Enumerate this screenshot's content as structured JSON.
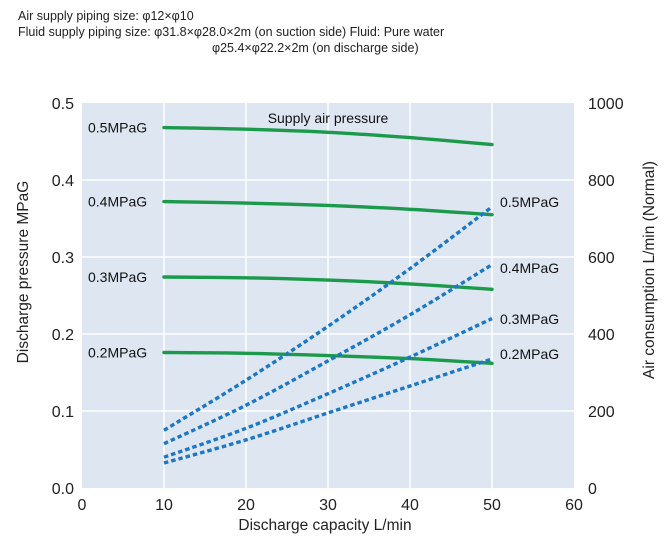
{
  "notes": {
    "air_piping": "Air supply piping size: φ12×φ10",
    "fluid_piping": "Fluid supply piping size: φ31.8×φ28.0×2m (on suction side)    Fluid: Pure water",
    "fluid_piping_2": "φ25.4×φ22.2×2m (on discharge side)"
  },
  "chart_data": {
    "type": "line",
    "annotation": "Supply air pressure",
    "xlabel": "Discharge capacity   L/min",
    "ylabel": "Discharge pressure   MPaG",
    "y2label": "Air consumption   L/min (Normal)",
    "xlim": [
      0,
      60
    ],
    "ylim": [
      0,
      0.5
    ],
    "y2lim": [
      0,
      1000
    ],
    "xticks": [
      "0",
      "10",
      "20",
      "30",
      "40",
      "50",
      "60"
    ],
    "yticks": [
      "0.0",
      "0.1",
      "0.2",
      "0.3",
      "0.4",
      "0.5"
    ],
    "y2ticks": [
      "0",
      "200",
      "400",
      "600",
      "800",
      "1000"
    ],
    "grid": true,
    "colors": {
      "pressure": "#1a9a4a",
      "air": "#1c78c4",
      "plot_bg": "#dde6f1",
      "grid": "#ffffff"
    },
    "pressure_series": [
      {
        "name": "0.5MPaG",
        "x": [
          10,
          20,
          30,
          40,
          50
        ],
        "y": [
          0.468,
          0.466,
          0.462,
          0.455,
          0.446
        ]
      },
      {
        "name": "0.4MPaG",
        "x": [
          10,
          20,
          30,
          40,
          50
        ],
        "y": [
          0.372,
          0.37,
          0.367,
          0.362,
          0.355
        ]
      },
      {
        "name": "0.3MPaG",
        "x": [
          10,
          20,
          30,
          40,
          50
        ],
        "y": [
          0.274,
          0.273,
          0.27,
          0.265,
          0.258
        ]
      },
      {
        "name": "0.2MPaG",
        "x": [
          10,
          20,
          30,
          40,
          50
        ],
        "y": [
          0.176,
          0.175,
          0.172,
          0.168,
          0.162
        ]
      }
    ],
    "air_series": [
      {
        "name": "0.5MPaG",
        "x": [
          10,
          20,
          30,
          40,
          50
        ],
        "y": [
          150,
          280,
          420,
          570,
          730
        ]
      },
      {
        "name": "0.4MPaG",
        "x": [
          10,
          20,
          30,
          40,
          50
        ],
        "y": [
          115,
          215,
          330,
          450,
          580
        ]
      },
      {
        "name": "0.3MPaG",
        "x": [
          10,
          20,
          30,
          40,
          50
        ],
        "y": [
          80,
          155,
          245,
          340,
          440
        ]
      },
      {
        "name": "0.2MPaG",
        "x": [
          10,
          20,
          30,
          40,
          50
        ],
        "y": [
          65,
          125,
          195,
          265,
          335
        ]
      }
    ]
  }
}
